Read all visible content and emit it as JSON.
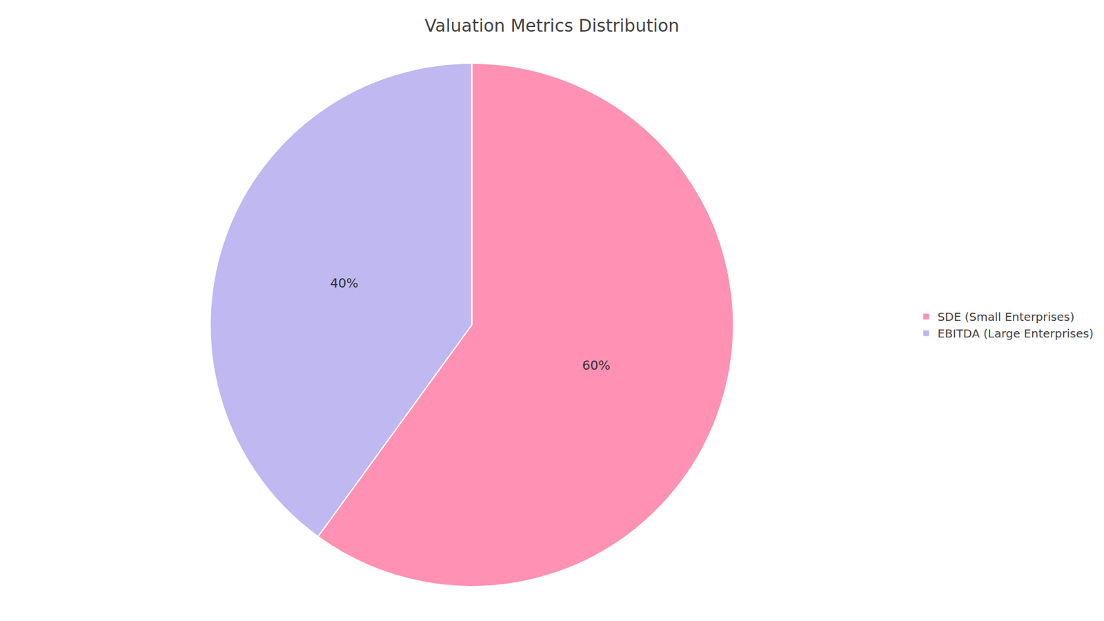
{
  "chart_data": {
    "type": "pie",
    "title": "Valuation Metrics Distribution",
    "categories": [
      "SDE (Small Enterprises)",
      "EBITDA (Large Enterprises)"
    ],
    "values": [
      60,
      40
    ],
    "value_labels": [
      "60%",
      "40%"
    ],
    "colors": [
      "#FF91B4",
      "#C0B8F0"
    ],
    "data_labels": true,
    "legend": "right"
  }
}
